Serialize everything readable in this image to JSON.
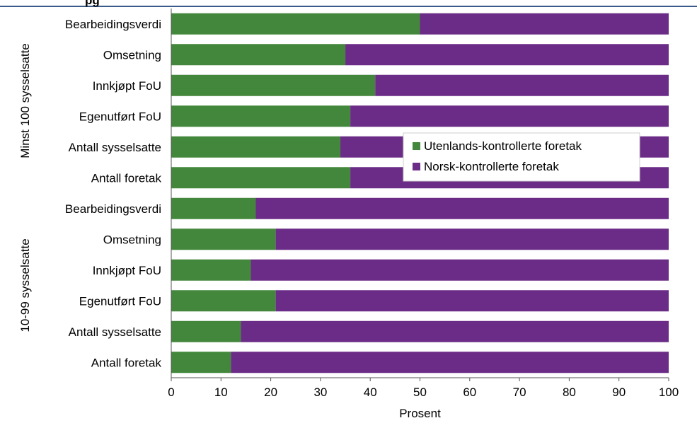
{
  "header": {
    "partial_title": "pg"
  },
  "chart_data": {
    "type": "bar",
    "orientation": "horizontal",
    "stacked": true,
    "categories": [
      "Bearbeidingsverdi",
      "Omsetning",
      "Innkjøpt FoU",
      "Egenutført FoU",
      "Antall sysselsatte",
      "Antall foretak",
      "Bearbeidingsverdi",
      "Omsetning",
      "Innkjøpt FoU",
      "Egenutført FoU",
      "Antall sysselsatte",
      "Antall foretak"
    ],
    "groups": [
      {
        "label": "Minst 100 sysselsatte",
        "categories": [
          0,
          1,
          2,
          3,
          4,
          5
        ]
      },
      {
        "label": "10-99 sysselsatte",
        "categories": [
          6,
          7,
          8,
          9,
          10,
          11
        ]
      }
    ],
    "series": [
      {
        "name": "Utenlands-kontrollerte foretak",
        "color": "#43873c",
        "values": [
          50,
          35,
          41,
          36,
          34,
          36,
          17,
          21,
          16,
          21,
          14,
          12
        ]
      },
      {
        "name": "Norsk-kontrollerte foretak",
        "color": "#6b2c87",
        "values": [
          50,
          65,
          59,
          64,
          66,
          64,
          83,
          79,
          84,
          79,
          86,
          88
        ]
      }
    ],
    "xlabel": "Prosent",
    "xlim": [
      0,
      100
    ],
    "xticks": [
      0,
      10,
      20,
      30,
      40,
      50,
      60,
      70,
      80,
      90,
      100
    ],
    "grid": false,
    "legend_position": "right-middle"
  }
}
